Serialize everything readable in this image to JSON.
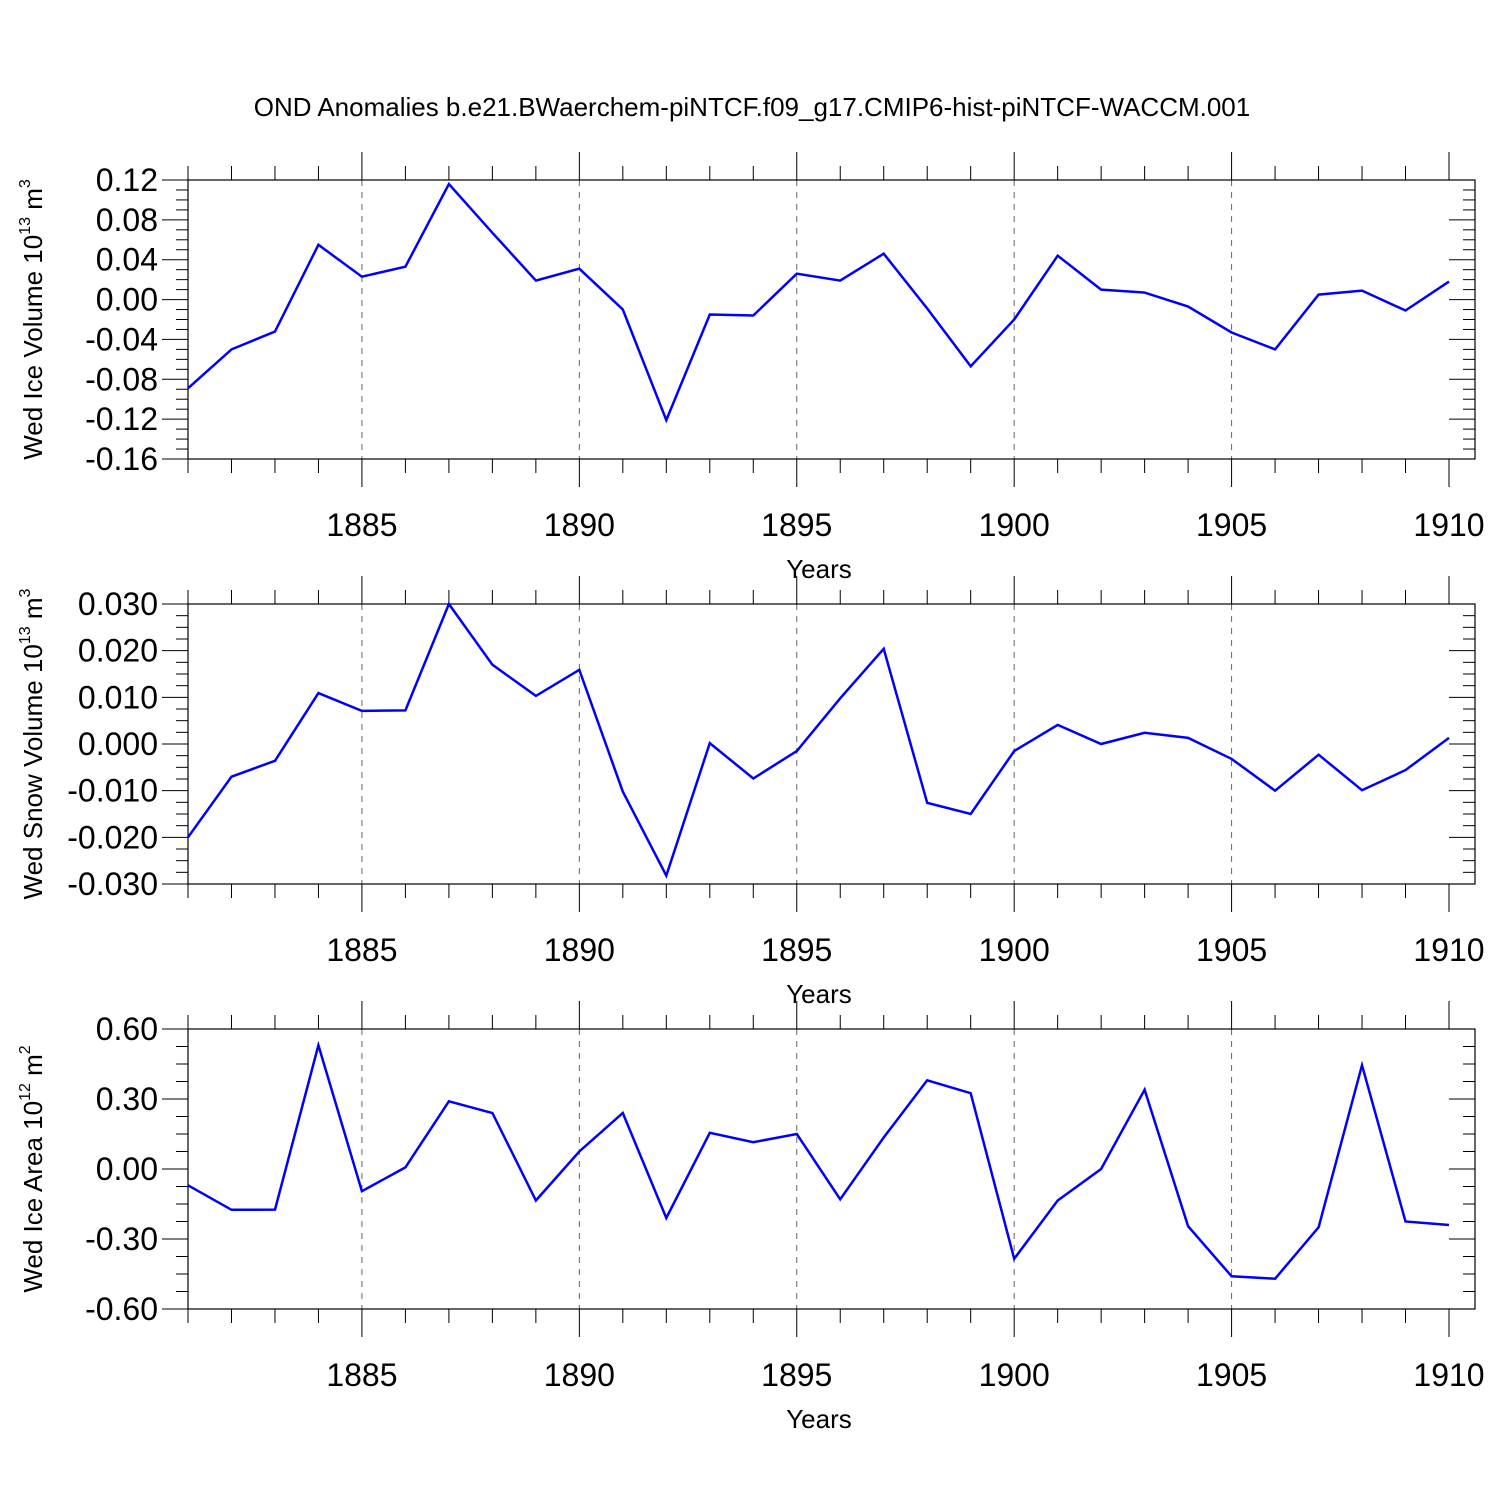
{
  "title": "OND Anomalies b.e21.BWaerchem-piNTCF.f09_g17.CMIP6-hist-piNTCF-WACCM.001",
  "chart_data": [
    {
      "type": "line",
      "ylabel": "Wed Ice Volume 10",
      "ylabel_exp": "13",
      "ylabel_unit": " m",
      "ylabel_unit_exp": "3",
      "xlabel": "Years",
      "xlim": [
        1881,
        1910
      ],
      "ylim": [
        -0.16,
        0.12
      ],
      "yticks": [
        0.12,
        0.08,
        0.04,
        0.0,
        -0.04,
        -0.08,
        -0.12,
        -0.16
      ],
      "yticklabels": [
        "0.12",
        "0.08",
        "0.04",
        "0.00",
        "-0.04",
        "-0.08",
        "-0.12",
        "-0.16"
      ],
      "xticks": [
        1885,
        1890,
        1895,
        1900,
        1905,
        1910
      ],
      "xticklabels": [
        "1885",
        "1890",
        "1895",
        "1900",
        "1905",
        "1910"
      ],
      "grid": "vertical dashed at major x ticks",
      "color": "#0000ff",
      "series": [
        {
          "x": [
            1881,
            1882,
            1883,
            1884,
            1885,
            1886,
            1887,
            1888,
            1889,
            1890,
            1891,
            1892,
            1893,
            1894,
            1895,
            1896,
            1897,
            1898,
            1899,
            1900,
            1901,
            1902,
            1903,
            1904,
            1905,
            1906,
            1907,
            1908,
            1909,
            1910
          ],
          "values": [
            -0.089,
            -0.05,
            -0.032,
            0.055,
            0.023,
            0.033,
            0.116,
            0.067,
            0.019,
            0.031,
            -0.01,
            -0.121,
            -0.015,
            -0.016,
            0.026,
            0.019,
            0.046,
            -0.009,
            -0.067,
            -0.02,
            0.044,
            0.01,
            0.007,
            -0.007,
            -0.033,
            -0.05,
            0.005,
            0.009,
            -0.011,
            0.018
          ]
        }
      ]
    },
    {
      "type": "line",
      "ylabel": "Wed Snow Volume 10",
      "ylabel_exp": "13",
      "ylabel_unit": " m",
      "ylabel_unit_exp": "3",
      "xlabel": "Years",
      "xlim": [
        1881,
        1910
      ],
      "ylim": [
        -0.03,
        0.03
      ],
      "yticks": [
        0.03,
        0.02,
        0.01,
        0.0,
        -0.01,
        -0.02,
        -0.03
      ],
      "yticklabels": [
        "0.030",
        "0.020",
        "0.010",
        "0.000",
        "-0.010",
        "-0.020",
        "-0.030"
      ],
      "xticks": [
        1885,
        1890,
        1895,
        1900,
        1905,
        1910
      ],
      "xticklabels": [
        "1885",
        "1890",
        "1895",
        "1900",
        "1905",
        "1910"
      ],
      "grid": "vertical dashed at major x ticks",
      "color": "#0000ff",
      "series": [
        {
          "x": [
            1881,
            1882,
            1883,
            1884,
            1885,
            1886,
            1887,
            1888,
            1889,
            1890,
            1891,
            1892,
            1893,
            1894,
            1895,
            1896,
            1897,
            1898,
            1899,
            1900,
            1901,
            1902,
            1903,
            1904,
            1905,
            1906,
            1907,
            1908,
            1909,
            1910
          ],
          "values": [
            -0.02,
            -0.007,
            -0.0036,
            0.0109,
            0.0071,
            0.0072,
            0.03,
            0.017,
            0.0103,
            0.0159,
            -0.0102,
            -0.0282,
            0.0002,
            -0.0074,
            -0.0015,
            0.0098,
            0.0204,
            -0.0126,
            -0.015,
            -0.0015,
            0.0041,
            0.0,
            0.0024,
            0.0013,
            -0.0032,
            -0.01,
            -0.0023,
            -0.0099,
            -0.0056,
            0.0013
          ]
        }
      ]
    },
    {
      "type": "line",
      "ylabel": "Wed Ice Area 10",
      "ylabel_exp": "12",
      "ylabel_unit": " m",
      "ylabel_unit_exp": "2",
      "xlabel": "Years",
      "xlim": [
        1881,
        1910
      ],
      "ylim": [
        -0.6,
        0.6
      ],
      "yticks": [
        0.6,
        0.3,
        0.0,
        -0.3,
        -0.6
      ],
      "yticklabels": [
        "0.60",
        "0.30",
        "0.00",
        "-0.30",
        "-0.60"
      ],
      "xticks": [
        1885,
        1890,
        1895,
        1900,
        1905,
        1910
      ],
      "xticklabels": [
        "1885",
        "1890",
        "1895",
        "1900",
        "1905",
        "1910"
      ],
      "grid": "vertical dashed at major x ticks",
      "color": "#0000ff",
      "series": [
        {
          "x": [
            1881,
            1882,
            1883,
            1884,
            1885,
            1886,
            1887,
            1888,
            1889,
            1890,
            1891,
            1892,
            1893,
            1894,
            1895,
            1896,
            1897,
            1898,
            1899,
            1900,
            1901,
            1902,
            1903,
            1904,
            1905,
            1906,
            1907,
            1908,
            1909,
            1910
          ],
          "values": [
            -0.07,
            -0.175,
            -0.174,
            0.53,
            -0.095,
            0.007,
            0.29,
            0.24,
            -0.135,
            0.075,
            0.24,
            -0.21,
            0.155,
            0.115,
            0.15,
            -0.13,
            0.135,
            0.38,
            0.325,
            -0.385,
            -0.135,
            0.0,
            0.34,
            -0.245,
            -0.46,
            -0.47,
            -0.25,
            0.445,
            -0.225,
            -0.24
          ]
        }
      ]
    }
  ]
}
